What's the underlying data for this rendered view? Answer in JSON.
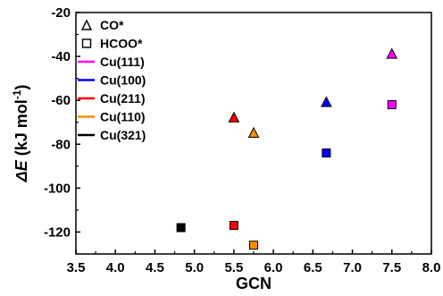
{
  "chart_data": {
    "type": "scatter",
    "xlabel": "GCN",
    "ylabel_symbol": "ΔE",
    "ylabel_unit": "(kJ mol",
    "ylabel_exp": "-1",
    "ylabel_close": ")",
    "xlim": [
      3.5,
      8.0
    ],
    "ylim": [
      -130,
      -20
    ],
    "x_ticks": [
      "3.5",
      "4.0",
      "4.5",
      "5.0",
      "5.5",
      "6.0",
      "6.5",
      "7.0",
      "7.5",
      "8.0"
    ],
    "y_ticks": [
      "-20",
      "-40",
      "-60",
      "-80",
      "-100",
      "-120"
    ],
    "grid": false,
    "legend_position": "top-left",
    "marker_legend": [
      {
        "label": "CO*",
        "marker": "triangle"
      },
      {
        "label": "HCOO*",
        "marker": "square"
      }
    ],
    "color_legend": [
      {
        "label": "Cu(111)",
        "color": "#ff00ff"
      },
      {
        "label": "Cu(100)",
        "color": "#0000ff"
      },
      {
        "label": "Cu(211)",
        "color": "#ff0000"
      },
      {
        "label": "Cu(110)",
        "color": "#ff8c00"
      },
      {
        "label": "Cu(321)",
        "color": "#000000"
      }
    ],
    "points": [
      {
        "x": 7.5,
        "y": -39,
        "marker": "triangle",
        "color": "#ff00ff"
      },
      {
        "x": 6.67,
        "y": -61,
        "marker": "triangle",
        "color": "#0000ff"
      },
      {
        "x": 5.5,
        "y": -68,
        "marker": "triangle",
        "color": "#ff0000"
      },
      {
        "x": 5.75,
        "y": -75,
        "marker": "triangle",
        "color": "#ff8c00"
      },
      {
        "x": 7.5,
        "y": -62,
        "marker": "square",
        "color": "#ff00ff"
      },
      {
        "x": 6.67,
        "y": -84,
        "marker": "square",
        "color": "#0000ff"
      },
      {
        "x": 5.5,
        "y": -117,
        "marker": "square",
        "color": "#ff0000"
      },
      {
        "x": 5.75,
        "y": -126,
        "marker": "square",
        "color": "#ff8c00"
      },
      {
        "x": 4.83,
        "y": -118,
        "marker": "square",
        "color": "#000000"
      }
    ]
  }
}
